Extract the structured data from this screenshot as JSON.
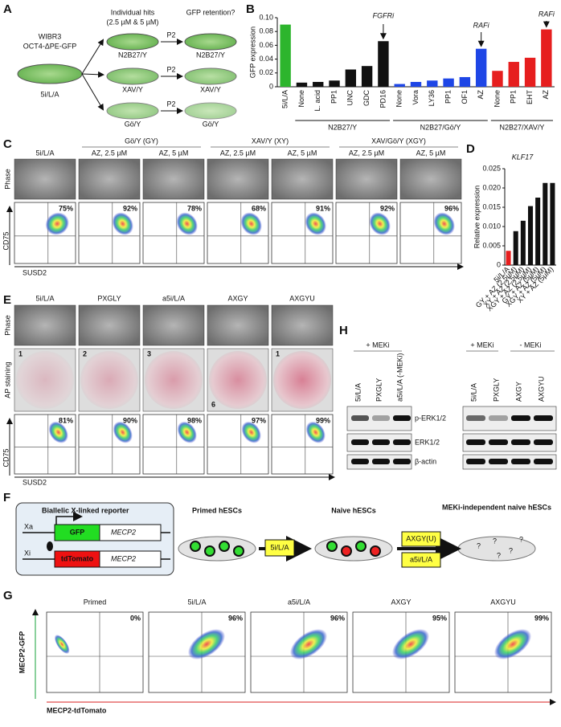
{
  "panel_labels": [
    "A",
    "B",
    "C",
    "D",
    "E",
    "F",
    "G",
    "H"
  ],
  "panel_a": {
    "line1": "WIBR3",
    "line2": "OCT4-ΔPE-GFP",
    "start": "5i/L/A",
    "hits_title": "Individual hits",
    "hits_sub": "(2.5 µM & 5 µM)",
    "retention": "GFP retention?",
    "passage": "P2",
    "conditions": [
      "N2B27/Y",
      "XAV/Y",
      "Gö/Y"
    ]
  },
  "chart_data": [
    {
      "type": "bar",
      "ylabel": "GFP expression",
      "categories": [
        "5i/L/A",
        "None",
        "L. acid",
        "PP1",
        "UNC",
        "GDC",
        "PD16",
        "None",
        "Vora",
        "LY36",
        "PP1",
        "OF1",
        "AZ",
        "None",
        "PP1",
        "EHT",
        "AZ"
      ],
      "values": [
        0.09,
        0.006,
        0.007,
        0.009,
        0.025,
        0.03,
        0.066,
        0.004,
        0.007,
        0.009,
        0.012,
        0.014,
        0.055,
        0.023,
        0.036,
        0.042,
        0.083
      ],
      "colors": [
        "#2db52d",
        "#111111",
        "#111111",
        "#111111",
        "#111111",
        "#111111",
        "#111111",
        "#1e46e6",
        "#1e46e6",
        "#1e46e6",
        "#1e46e6",
        "#1e46e6",
        "#1e46e6",
        "#e61e1e",
        "#e61e1e",
        "#e61e1e",
        "#e61e1e"
      ],
      "ylim": [
        0,
        0.1
      ],
      "yticks": [
        0,
        0.02,
        0.04,
        0.06,
        0.08,
        {
          "value": 0.1,
          "label": "0.10"
        }
      ],
      "groups": [
        "N2B27/Y",
        "N2B27/Gö/Y",
        "N2B27/XAV/Y"
      ],
      "annotations": [
        "FGFRi",
        "RAFi",
        "RAFi"
      ]
    },
    {
      "type": "bar",
      "title": "KLF17",
      "ylabel": "Relative expression",
      "categories": [
        "5i/L/A",
        "GY + AZ (2.5μM)",
        "XY + AZ (2.5μM)",
        "XGY + AZ (2.5μM)",
        "GY + AZ (5μM)",
        "XGY + AZ (5μM)",
        "XY + AZ (5μM)"
      ],
      "values": [
        0.0037,
        0.0088,
        0.0115,
        0.0153,
        0.0175,
        0.0213,
        0.0213
      ],
      "colors": [
        "#e61e1e",
        "#111111",
        "#111111",
        "#111111",
        "#111111",
        "#111111",
        "#111111"
      ],
      "ylim": [
        0,
        0.025
      ],
      "yticks": [
        0,
        0.005,
        {
          "value": 0.01,
          "label": "0.010"
        },
        0.015,
        {
          "value": 0.02,
          "label": "0.020"
        },
        0.025
      ]
    }
  ],
  "panel_c": {
    "groups": [
      "Gö/Y (GY)",
      "XAV/Y (XY)",
      "XAV/Gö/Y (XGY)"
    ],
    "columns": [
      "5i/L/A",
      "AZ, 2.5 µM",
      "AZ, 5 µM",
      "AZ, 2.5 µM",
      "AZ, 5 µM",
      "AZ, 2.5 µM",
      "AZ, 5 µM"
    ],
    "row_label": "Phase",
    "y_axis": "CD75",
    "x_axis": "SUSD2",
    "percents": [
      "75%",
      "92%",
      "78%",
      "68%",
      "91%",
      "92%",
      "96%"
    ]
  },
  "panel_e": {
    "columns": [
      "5i/L/A",
      "PXGLY",
      "a5i/L/A",
      "AXGY",
      "AXGYU"
    ],
    "rows": [
      "Phase",
      "AP staining"
    ],
    "well_numbers": [
      "1",
      "2",
      "3",
      "6",
      "1"
    ],
    "percents": [
      "81%",
      "90%",
      "98%",
      "97%",
      "99%"
    ],
    "y_axis": "CD75",
    "x_axis": "SUSD2"
  },
  "panel_f": {
    "title": "Biallelic X-linked reporter",
    "xa": "Xa",
    "xi": "Xi",
    "gfp": "GFP",
    "tdtomato": "tdTomato",
    "gene": "MECP2",
    "stages": [
      "Primed hESCs",
      "Naive hESCs",
      "MEKi-independent naive hESCs"
    ],
    "arrow1": "5i/L/A",
    "arrow2_top": "AXGY(U)",
    "arrow2_bottom": "a5i/L/A"
  },
  "panel_g": {
    "columns": [
      "Primed",
      "5i/L/A",
      "a5i/L/A",
      "AXGY",
      "AXGYU"
    ],
    "percents": [
      "0%",
      "96%",
      "96%",
      "95%",
      "99%"
    ],
    "y_axis": "MECP2-GFP",
    "x_axis": "MECP2-tdTomato"
  },
  "panel_h": {
    "left_group": "+ MEKi",
    "left_lanes": [
      "5i/L/A",
      "PXGLY",
      "a5i/L/A (-MEKi)"
    ],
    "right_groups": [
      "+ MEKi",
      "- MEKi"
    ],
    "right_lanes": [
      "5i/L/A",
      "PXGLY",
      "AXGY",
      "AXGYU"
    ],
    "bands": [
      "p-ERK1/2",
      "ERK1/2",
      "β-actin"
    ]
  }
}
